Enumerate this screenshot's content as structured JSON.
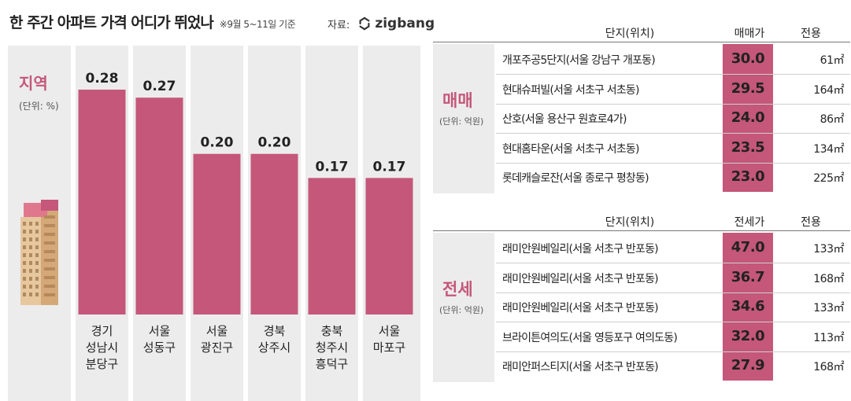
{
  "header": {
    "title": "한 주간 아파트 가격 어디가 뛰었나",
    "period": "※9월 5~11일 기준",
    "source_label": "자료:",
    "source_brand": "zigbang"
  },
  "chart_data": [
    {
      "type": "bar",
      "title": "지역",
      "unit": "(단위: %)",
      "categories": [
        "경기 성남시 분당구",
        "서울 성동구",
        "서울 광진구",
        "경북 상주시",
        "충북 청주시 흥덕구",
        "서울 마포구"
      ],
      "category_lines": [
        [
          "경기",
          "성남시",
          "분당구"
        ],
        [
          "서울",
          "성동구"
        ],
        [
          "서울",
          "광진구"
        ],
        [
          "경북",
          "상주시"
        ],
        [
          "충북",
          "청주시",
          "흥덕구"
        ],
        [
          "서울",
          "마포구"
        ]
      ],
      "values": [
        0.28,
        0.27,
        0.2,
        0.2,
        0.17,
        0.17
      ],
      "value_labels": [
        "0.28",
        "0.27",
        "0.20",
        "0.20",
        "0.17",
        "0.17"
      ],
      "ylim": [
        0,
        0.3
      ],
      "bar_color": "#c4577a"
    },
    {
      "type": "table",
      "title": "매매",
      "unit": "(단위: 억원)",
      "columns": [
        "단지(위치)",
        "매매가",
        "전용"
      ],
      "rows": [
        [
          "개포주공5단지(서울 강남구 개포동)",
          "30.0",
          "61㎡"
        ],
        [
          "현대슈퍼빌(서울 서초구 서초동)",
          "29.5",
          "164㎡"
        ],
        [
          "산호(서울 용산구 원효로4가)",
          "24.0",
          "86㎡"
        ],
        [
          "현대홈타운(서울 서초구 서초동)",
          "23.5",
          "134㎡"
        ],
        [
          "롯데캐슬로잔(서울 종로구 평창동)",
          "23.0",
          "225㎡"
        ]
      ]
    },
    {
      "type": "table",
      "title": "전세",
      "unit": "(단위: 억원)",
      "columns": [
        "단지(위치)",
        "전세가",
        "전용"
      ],
      "rows": [
        [
          "래미안원베일리(서울 서초구 반포동)",
          "47.0",
          "133㎡"
        ],
        [
          "래미안원베일리(서울 서초구 반포동)",
          "36.7",
          "168㎡"
        ],
        [
          "래미안원베일리(서울 서초구 반포동)",
          "34.6",
          "133㎡"
        ],
        [
          "브라이튼여의도(서울 영등포구 여의도동)",
          "32.0",
          "113㎡"
        ],
        [
          "래미안퍼스티지(서울 서초구 반포동)",
          "27.9",
          "168㎡"
        ]
      ]
    }
  ],
  "colors": {
    "accent": "#c4577a",
    "panel_bg": "#ececec"
  }
}
